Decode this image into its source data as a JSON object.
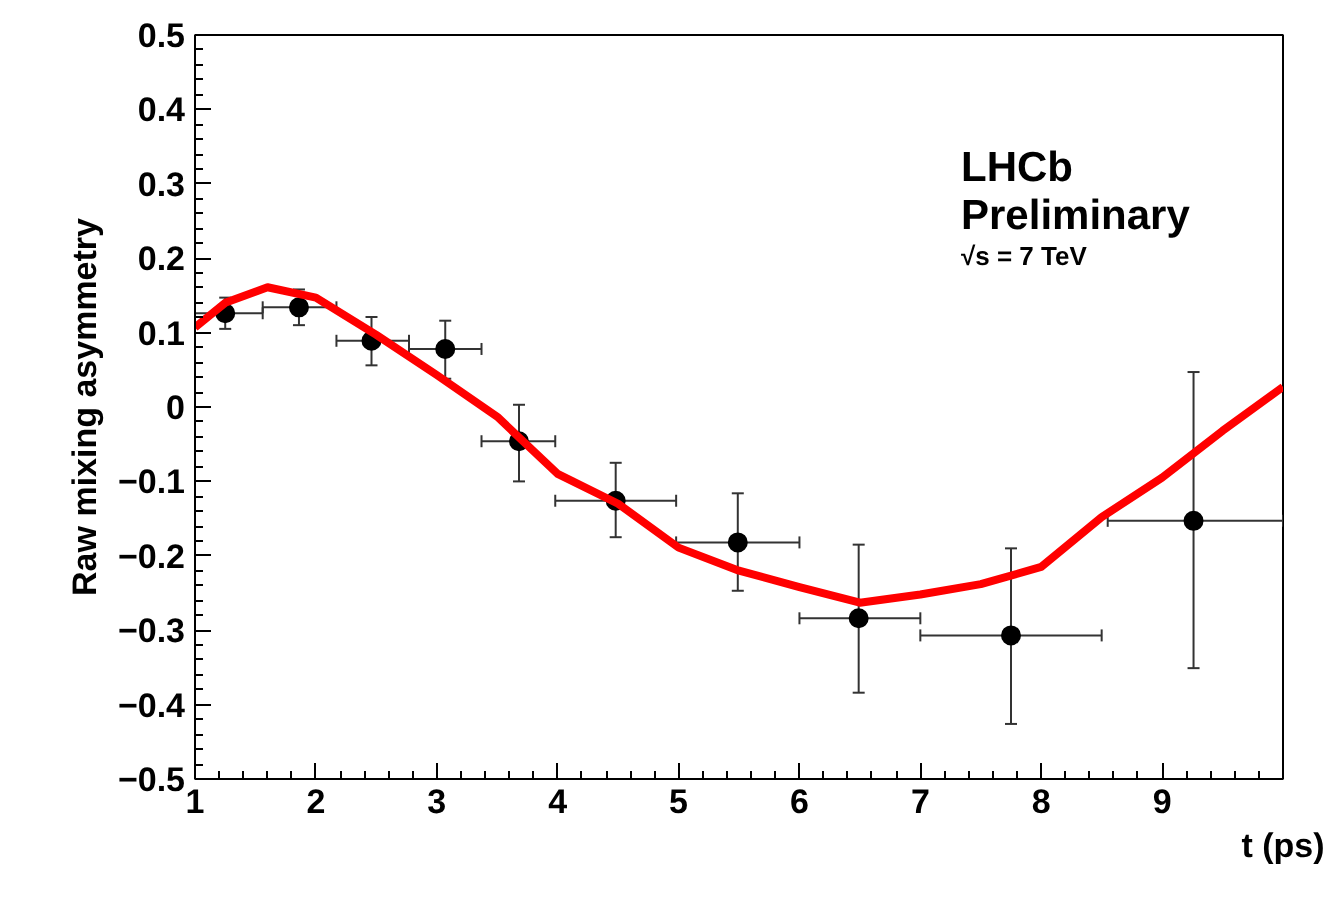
{
  "chart_data": {
    "type": "scatter",
    "xlabel": "t (ps)",
    "ylabel": "Raw mixing asymmetry",
    "annotations": [
      "LHCb",
      "Preliminary",
      "√s = 7 TeV"
    ],
    "xlim": [
      1,
      10
    ],
    "xticks": [
      1,
      2,
      3,
      4,
      5,
      6,
      7,
      8,
      9
    ],
    "ylim": [
      -0.5,
      0.5
    ],
    "yticks": [
      -0.5,
      -0.4,
      -0.3,
      -0.2,
      -0.1,
      0,
      0.1,
      0.2,
      0.3,
      0.4,
      0.5
    ],
    "grid": false,
    "series": [
      {
        "marker": "circle",
        "color": "#000000",
        "x": [
          1.25,
          1.86,
          2.46,
          3.07,
          3.68,
          4.48,
          5.49,
          6.49,
          7.75,
          9.26
        ],
        "values": [
          0.126,
          0.134,
          0.089,
          0.078,
          -0.046,
          -0.126,
          -0.182,
          -0.284,
          -0.307,
          -0.153
        ],
        "errors": [
          [
            0.105,
            0.147
          ],
          [
            0.11,
            0.158
          ],
          [
            0.056,
            0.121
          ],
          [
            0.038,
            0.116
          ],
          [
            -0.1,
            0.003
          ],
          [
            -0.175,
            -0.075
          ],
          [
            -0.247,
            -0.116
          ],
          [
            -0.384,
            -0.185
          ],
          [
            -0.426,
            -0.19
          ],
          [
            -0.351,
            0.047
          ]
        ],
        "xerrors": [
          [
            1.0,
            1.56
          ],
          [
            1.56,
            2.17
          ],
          [
            2.17,
            2.77
          ],
          [
            2.77,
            3.37
          ],
          [
            3.37,
            3.98
          ],
          [
            3.98,
            4.98
          ],
          [
            4.98,
            6.0
          ],
          [
            6.0,
            7.0
          ],
          [
            7.0,
            8.5
          ],
          [
            8.55,
            10
          ]
        ]
      },
      {
        "type": "line",
        "color": "#ff0000",
        "line_style": "solid",
        "x": [
          1,
          1.25,
          1.6,
          2,
          2.5,
          3,
          3.5,
          4,
          4.5,
          5,
          5.5,
          6,
          6.5,
          7,
          7.5,
          8,
          8.5,
          9,
          9.5,
          10
        ],
        "values": [
          0.107,
          0.14,
          0.161,
          0.147,
          0.097,
          0.043,
          -0.013,
          -0.09,
          -0.13,
          -0.189,
          -0.22,
          -0.242,
          -0.263,
          -0.252,
          -0.238,
          -0.215,
          -0.148,
          -0.095,
          -0.032,
          0.027
        ]
      }
    ]
  }
}
